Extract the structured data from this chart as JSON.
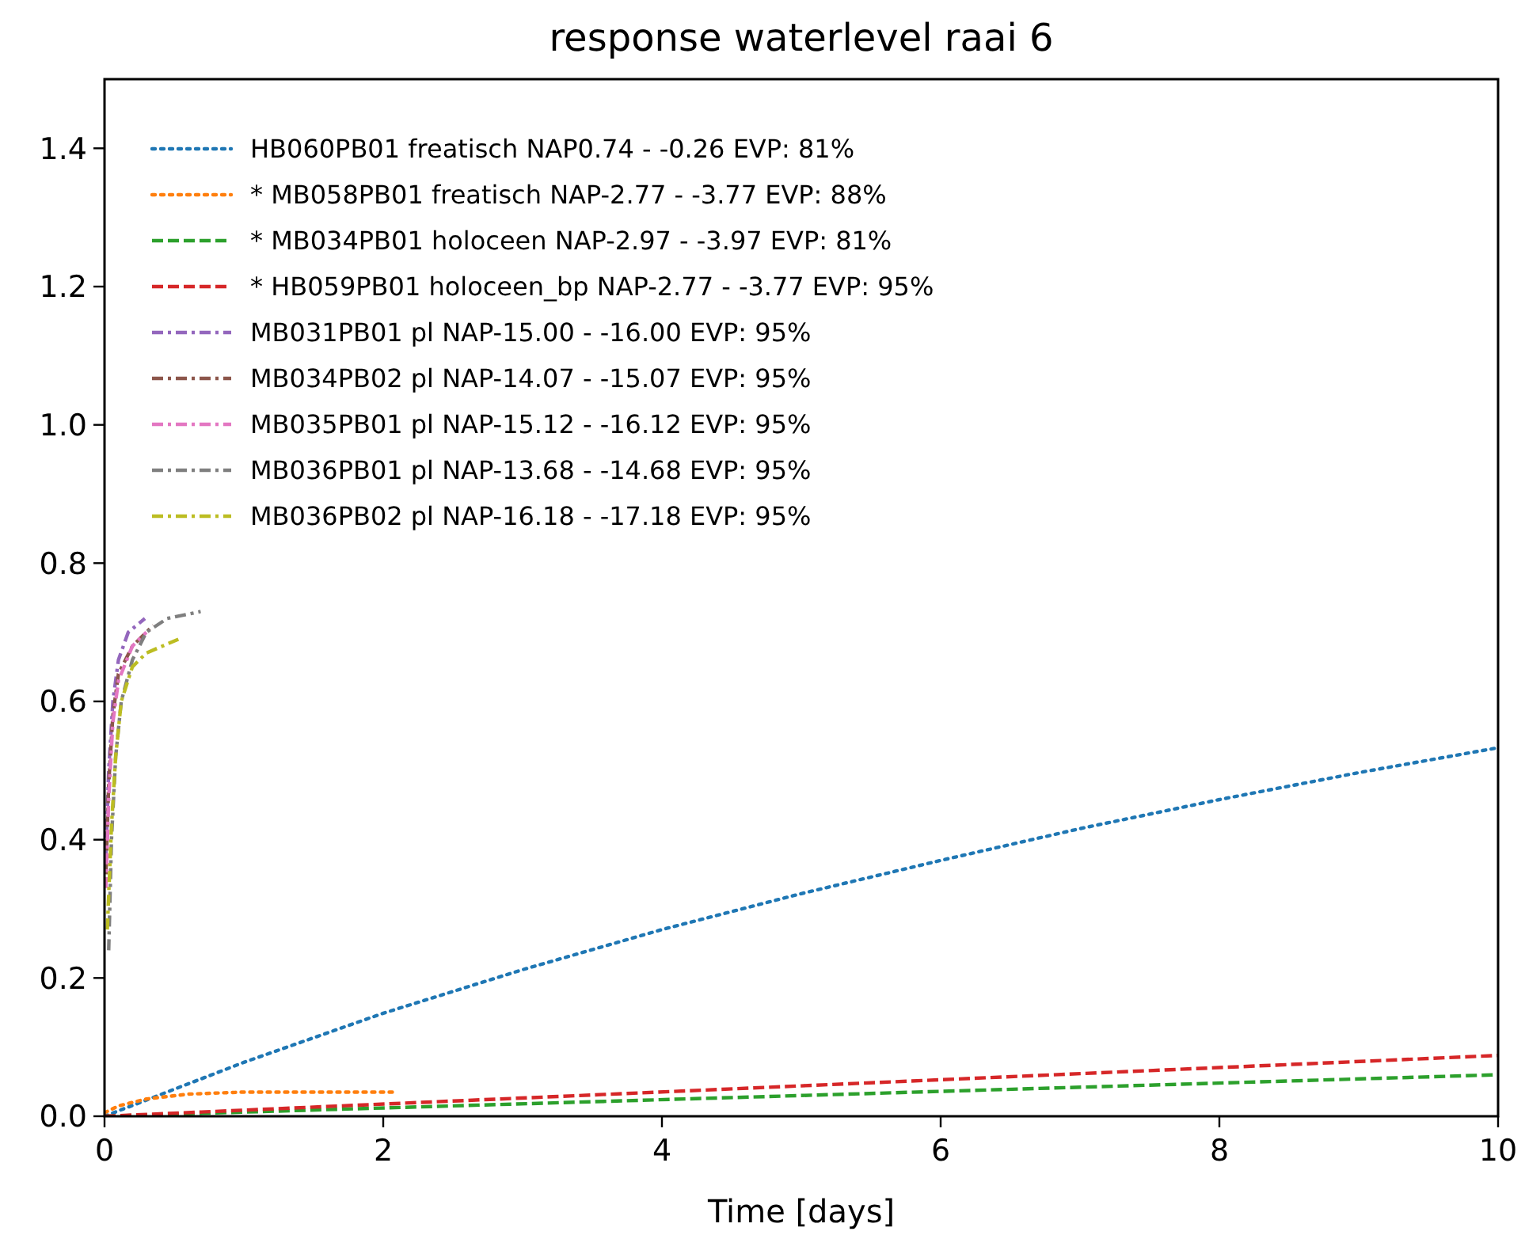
{
  "chart_data": {
    "type": "line",
    "title": "response waterlevel raai 6",
    "xlabel": "Time [days]",
    "xlim": [
      0,
      10
    ],
    "xticks": [
      0,
      2,
      4,
      6,
      8,
      10
    ],
    "ylim": [
      0,
      1.5
    ],
    "yticks": [
      {
        "value": 0,
        "label": "0.0"
      },
      {
        "value": 0.2,
        "label": "0.2"
      },
      {
        "value": 0.4,
        "label": "0.4"
      },
      {
        "value": 0.6,
        "label": "0.6"
      },
      {
        "value": 0.8,
        "label": "0.8"
      },
      {
        "value": 1,
        "label": "1.0"
      },
      {
        "value": 1.2,
        "label": "1.2"
      },
      {
        "value": 1.4,
        "label": "1.4"
      }
    ],
    "legend": "top left",
    "grid": false,
    "marker": "none",
    "series": [
      {
        "name": "HB060PB01 freatisch NAP0.74 - -0.26 EVP: 81%",
        "color": "#1f77b4",
        "line_style": "dotted",
        "x": [
          0,
          1,
          2,
          3,
          4,
          5,
          6,
          7,
          8,
          9,
          10
        ],
        "values": [
          0,
          0.078,
          0.149,
          0.212,
          0.27,
          0.322,
          0.37,
          0.416,
          0.458,
          0.497,
          0.533
        ]
      },
      {
        "name": "* MB058PB01 freatisch NAP-2.77 - -3.77 EVP: 88%",
        "color": "#ff7f0e",
        "line_style": "dotted",
        "x": [
          0,
          0.1,
          0.3,
          0.6,
          1,
          1.5,
          2.1
        ],
        "values": [
          0.005,
          0.015,
          0.025,
          0.032,
          0.035,
          0.035,
          0.035
        ]
      },
      {
        "name": "* MB034PB01 holoceen NAP-2.97 - -3.97 EVP: 81%",
        "color": "#2ca02c",
        "line_style": "dashed",
        "x": [
          0,
          2.5,
          5,
          7.5,
          10
        ],
        "values": [
          0,
          0.015,
          0.03,
          0.045,
          0.06
        ]
      },
      {
        "name": "* HB059PB01 holoceen_bp NAP-2.77 - -3.77 EVP: 95%",
        "color": "#d62728",
        "line_style": "dashed",
        "x": [
          0,
          2.5,
          5,
          7.5,
          10
        ],
        "values": [
          0,
          0.022,
          0.044,
          0.066,
          0.088
        ]
      },
      {
        "name": "MB031PB01 pl NAP-15.00 - -16.00 EVP: 95%",
        "color": "#9467bd",
        "line_style": "dashdot",
        "x": [
          0.01,
          0.03,
          0.06,
          0.1,
          0.17,
          0.29
        ],
        "values": [
          0.38,
          0.5,
          0.6,
          0.66,
          0.7,
          0.72
        ]
      },
      {
        "name": "MB034PB02 pl NAP-14.07 - -15.07 EVP: 95%",
        "color": "#8c564b",
        "line_style": "dashdot",
        "x": [
          0.01,
          0.03,
          0.06,
          0.1,
          0.2,
          0.35
        ],
        "values": [
          0.35,
          0.48,
          0.58,
          0.64,
          0.68,
          0.71
        ]
      },
      {
        "name": "MB035PB01 pl NAP-15.12 - -16.12 EVP: 95%",
        "color": "#e377c2",
        "line_style": "dashdot",
        "x": [
          0.01,
          0.03,
          0.06,
          0.1,
          0.2,
          0.3
        ],
        "values": [
          0.33,
          0.46,
          0.57,
          0.63,
          0.68,
          0.7
        ]
      },
      {
        "name": "MB036PB01 pl NAP-13.68 - -14.68 EVP: 95%",
        "color": "#7f7f7f",
        "line_style": "dashdot",
        "x": [
          0.03,
          0.05,
          0.08,
          0.12,
          0.2,
          0.3,
          0.45,
          0.69
        ],
        "values": [
          0.24,
          0.4,
          0.52,
          0.6,
          0.66,
          0.7,
          0.72,
          0.73
        ]
      },
      {
        "name": "MB036PB02 pl NAP-16.18 - -17.18 EVP: 95%",
        "color": "#bcbd22",
        "line_style": "dashdot",
        "x": [
          0.02,
          0.05,
          0.08,
          0.12,
          0.2,
          0.3,
          0.53
        ],
        "values": [
          0.27,
          0.42,
          0.52,
          0.6,
          0.65,
          0.67,
          0.69
        ]
      }
    ]
  }
}
